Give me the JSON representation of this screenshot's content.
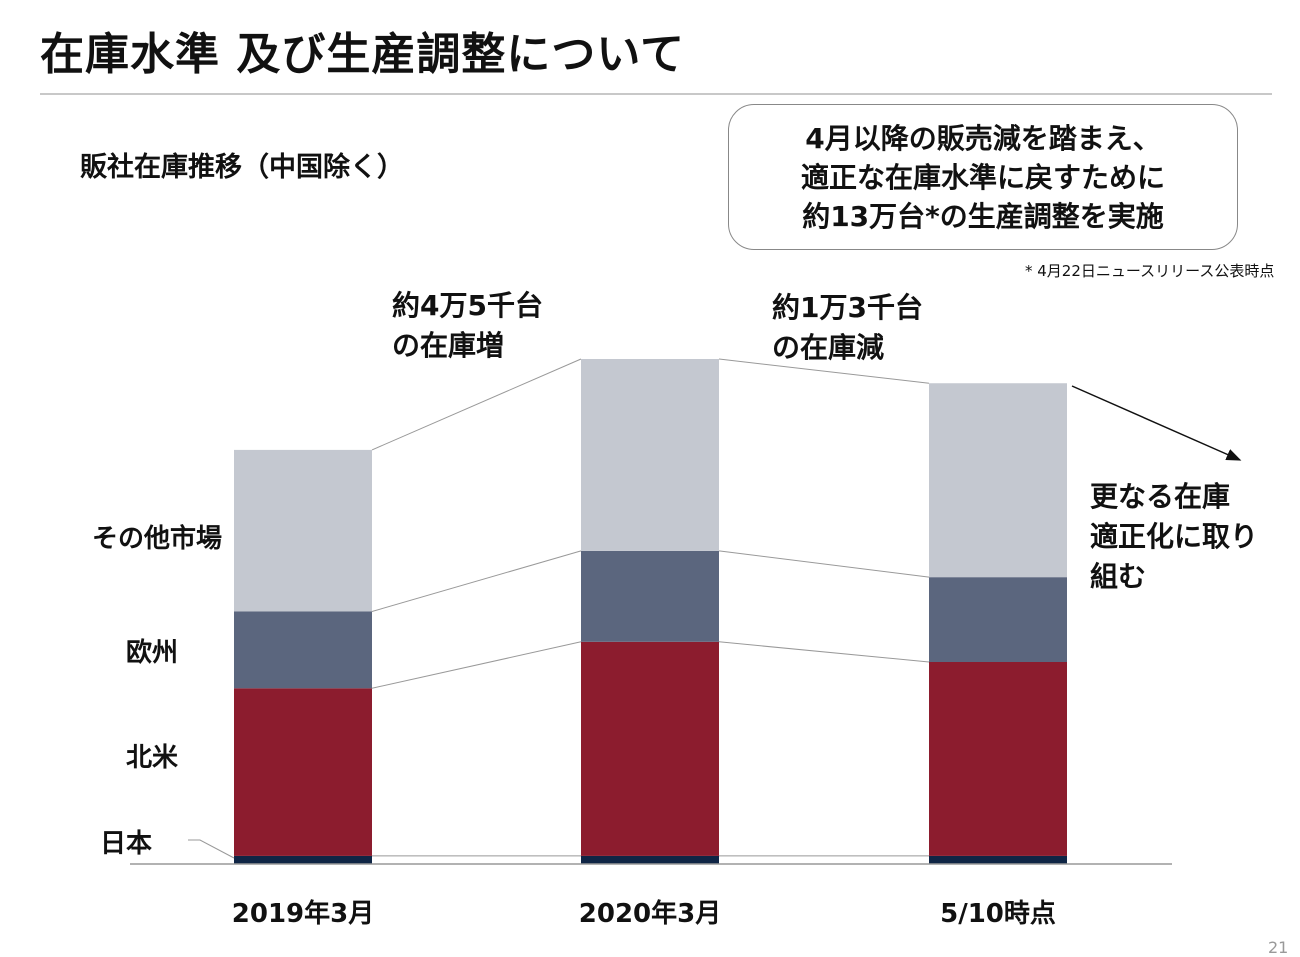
{
  "title": "在庫水準 及び生産調整について",
  "subtitle": "販社在庫推移（中国除く）",
  "callout": {
    "lines": [
      "4月以降の販売減を踏まえ、",
      "適正な在庫水準に戻すために",
      "約13万台*の生産調整を実施"
    ]
  },
  "footnote": "* 4月22日ニュースリリース公表時点",
  "annotations": {
    "increase": [
      "約4万5千台",
      "の在庫増"
    ],
    "decrease": [
      "約1万3千台",
      "の在庫減"
    ],
    "further": [
      "更なる在庫",
      "適正化に取り",
      "組む"
    ]
  },
  "page_number": "21",
  "chart_data": {
    "type": "bar",
    "stacked": true,
    "title": "販社在庫推移（中国除く）",
    "categories": [
      "2019年3月",
      "2020年3月",
      "5/10時点"
    ],
    "unit_note": "estimated, thousand units (no axis printed)",
    "series": [
      {
        "name": "日本",
        "values": [
          4,
          4,
          4
        ],
        "color": "#0f2545"
      },
      {
        "name": "北米",
        "values": [
          83,
          106,
          96
        ],
        "color": "#8c1c2e"
      },
      {
        "name": "欧州",
        "values": [
          38,
          45,
          42
        ],
        "color": "#5b667e"
      },
      {
        "name": "その他市場",
        "values": [
          80,
          95,
          96
        ],
        "color": "#c4c8d0"
      }
    ],
    "xlabel": "",
    "ylabel": "",
    "ylim": [
      0,
      260
    ],
    "grid": false,
    "legend": "left"
  }
}
